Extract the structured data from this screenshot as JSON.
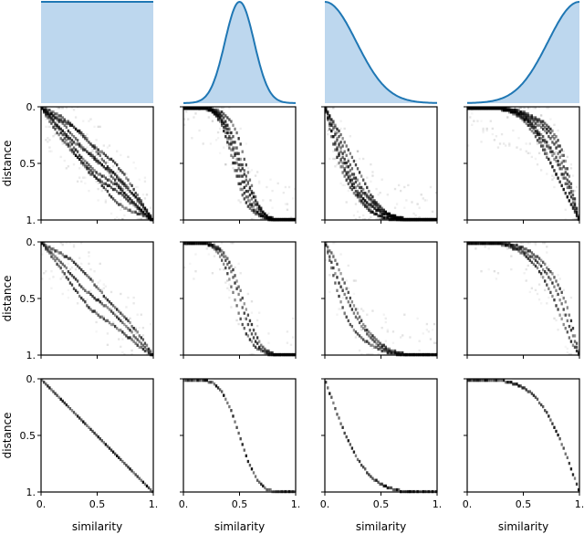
{
  "chart_data": {
    "type": "heatmap",
    "description_free": true,
    "columns": 4,
    "rows": 3,
    "axes": {
      "xlabel": "similarity",
      "ylabel": "distance",
      "x_ticks": [
        0,
        0.5,
        1
      ],
      "x_tick_labels": [
        "0.",
        "0.5",
        "1."
      ],
      "y_ticks": [
        0,
        0.5,
        1
      ],
      "y_tick_labels": [
        "0.",
        "0.5",
        "1."
      ],
      "xlim": [
        0,
        1
      ],
      "ylim": [
        1,
        0
      ]
    },
    "distributions": [
      {
        "kind": "uniform",
        "mean": 0.5,
        "sd": 1.0
      },
      {
        "kind": "normal",
        "mean": 0.5,
        "sd": 0.13
      },
      {
        "kind": "normal",
        "mean": 0.0,
        "sd": 0.28
      },
      {
        "kind": "normal",
        "mean": 1.0,
        "sd": 0.28
      }
    ],
    "density_color": "#1f77b4",
    "density_fill": "#bdd7ee",
    "heatmap_rows": [
      {
        "curves": 7,
        "spread": 0.16,
        "noise": 0.55
      },
      {
        "curves": 3,
        "spread": 0.12,
        "noise": 0.35
      },
      {
        "curves": 1,
        "spread": 0.0,
        "noise": 0.0
      }
    ]
  }
}
